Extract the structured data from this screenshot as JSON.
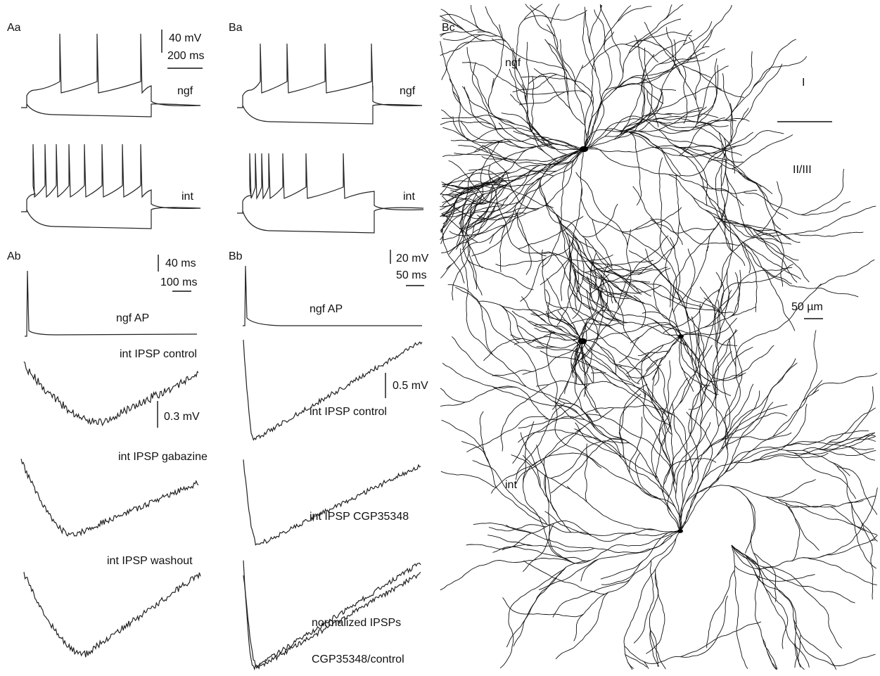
{
  "panels": {
    "Aa": {
      "label": "Aa",
      "scale_voltage": "40 mV",
      "scale_time": "200 ms",
      "trace_labels": [
        "ngf",
        "int"
      ]
    },
    "Ba": {
      "label": "Ba",
      "trace_labels": [
        "ngf",
        "int"
      ]
    },
    "Ab": {
      "label": "Ab",
      "scale_voltage": "40 ms",
      "scale_time": "100 ms",
      "ap_label": "ngf AP",
      "ipsp_scale": "0.3 mV",
      "trace_labels": [
        "int IPSP control",
        "int IPSP gabazine",
        "int IPSP washout"
      ]
    },
    "Bb": {
      "label": "Bb",
      "scale_voltage": "20 mV",
      "scale_time": "50 ms",
      "ap_label": "ngf AP",
      "ipsp_scale": "0.5 mV",
      "trace_labels": [
        "int IPSP control",
        "int IPSP CGP35348",
        "normalized IPSPs",
        "CGP35348/control"
      ]
    },
    "Bc": {
      "label": "Bc",
      "cell_labels": [
        "ngf",
        "int"
      ],
      "layer_labels": [
        "I",
        "II/III"
      ],
      "scale": "50 µm"
    }
  }
}
